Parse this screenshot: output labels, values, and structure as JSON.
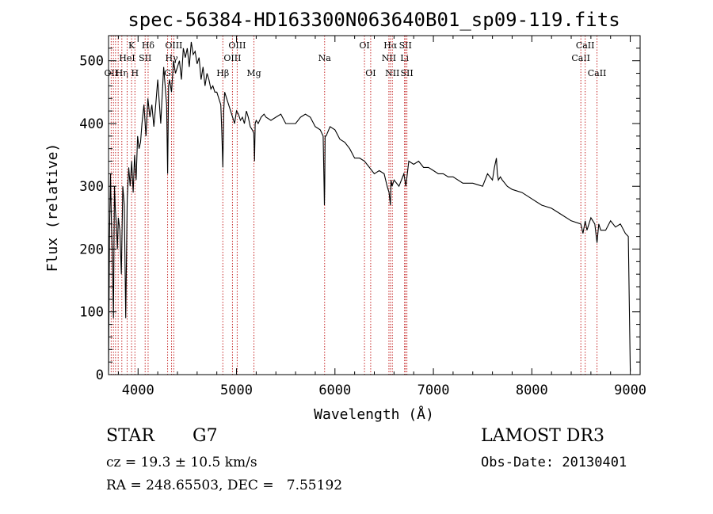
{
  "chart_data": {
    "type": "line",
    "title": "spec-56384-HD163300N063640B01_sp09-119.fits",
    "xlabel": "Wavelength (Å)",
    "ylabel": "Flux (relative)",
    "xlim": [
      3700,
      9100
    ],
    "ylim": [
      0,
      540
    ],
    "xticks": [
      {
        "value": 4000,
        "label": "4000"
      },
      {
        "value": 5000,
        "label": "5000"
      },
      {
        "value": 6000,
        "label": "6000"
      },
      {
        "value": 7000,
        "label": "7000"
      },
      {
        "value": 8000,
        "label": "8000"
      },
      {
        "value": 9000,
        "label": "9000"
      }
    ],
    "yticks": [
      {
        "value": 0,
        "label": "0"
      },
      {
        "value": 100,
        "label": "100"
      },
      {
        "value": 200,
        "label": "200"
      },
      {
        "value": 300,
        "label": "300"
      },
      {
        "value": 400,
        "label": "400"
      },
      {
        "value": 500,
        "label": "500"
      }
    ],
    "grid": false,
    "line_color": "#000000",
    "marker_color": "#c62828",
    "spectrum": {
      "x": [
        3700,
        3710,
        3720,
        3730,
        3740,
        3750,
        3760,
        3770,
        3780,
        3790,
        3800,
        3815,
        3830,
        3845,
        3860,
        3875,
        3890,
        3905,
        3920,
        3935,
        3950,
        3965,
        3980,
        3995,
        4010,
        4025,
        4040,
        4060,
        4080,
        4100,
        4120,
        4140,
        4160,
        4180,
        4200,
        4230,
        4260,
        4290,
        4300,
        4310,
        4320,
        4340,
        4360,
        4380,
        4400,
        4420,
        4440,
        4460,
        4480,
        4500,
        4520,
        4540,
        4560,
        4580,
        4600,
        4620,
        4640,
        4660,
        4680,
        4700,
        4720,
        4740,
        4760,
        4780,
        4800,
        4820,
        4840,
        4850,
        4861,
        4870,
        4880,
        4900,
        4920,
        4940,
        4960,
        4980,
        5000,
        5020,
        5040,
        5060,
        5080,
        5100,
        5120,
        5140,
        5160,
        5175,
        5183,
        5190,
        5200,
        5220,
        5250,
        5280,
        5300,
        5350,
        5400,
        5450,
        5500,
        5550,
        5600,
        5650,
        5700,
        5750,
        5800,
        5850,
        5880,
        5890,
        5893,
        5896,
        5900,
        5910,
        5950,
        6000,
        6050,
        6100,
        6150,
        6200,
        6250,
        6300,
        6350,
        6400,
        6450,
        6500,
        6530,
        6550,
        6563,
        6570,
        6580,
        6600,
        6650,
        6700,
        6720,
        6750,
        6800,
        6850,
        6900,
        6950,
        7000,
        7050,
        7100,
        7150,
        7200,
        7300,
        7400,
        7500,
        7550,
        7600,
        7620,
        7640,
        7650,
        7660,
        7680,
        7700,
        7750,
        7800,
        7900,
        8000,
        8100,
        8200,
        8300,
        8400,
        8498,
        8520,
        8542,
        8560,
        8600,
        8640,
        8662,
        8680,
        8700,
        8750,
        8800,
        8850,
        8900,
        8950,
        8980,
        9000
      ],
      "y": [
        5,
        220,
        320,
        240,
        180,
        90,
        300,
        260,
        240,
        200,
        250,
        230,
        160,
        300,
        270,
        90,
        280,
        330,
        300,
        340,
        290,
        350,
        310,
        380,
        360,
        370,
        400,
        430,
        380,
        440,
        410,
        430,
        395,
        430,
        470,
        400,
        490,
        430,
        320,
        460,
        470,
        450,
        500,
        480,
        490,
        500,
        470,
        520,
        505,
        520,
        490,
        530,
        510,
        515,
        495,
        505,
        470,
        490,
        460,
        480,
        470,
        455,
        460,
        450,
        450,
        440,
        430,
        390,
        330,
        420,
        450,
        440,
        430,
        420,
        410,
        400,
        420,
        415,
        405,
        410,
        400,
        420,
        410,
        395,
        390,
        385,
        340,
        400,
        405,
        400,
        410,
        415,
        410,
        405,
        410,
        415,
        400,
        400,
        400,
        410,
        415,
        410,
        395,
        390,
        380,
        300,
        270,
        300,
        380,
        380,
        395,
        390,
        375,
        370,
        360,
        345,
        345,
        340,
        330,
        320,
        325,
        320,
        300,
        290,
        270,
        310,
        300,
        310,
        300,
        320,
        300,
        340,
        335,
        340,
        330,
        330,
        325,
        320,
        320,
        315,
        315,
        305,
        305,
        300,
        320,
        310,
        330,
        345,
        320,
        310,
        315,
        310,
        300,
        295,
        290,
        280,
        270,
        265,
        255,
        245,
        240,
        225,
        245,
        230,
        250,
        240,
        210,
        240,
        230,
        230,
        245,
        235,
        240,
        225,
        220,
        5
      ]
    },
    "lines": [
      {
        "wave": 3727,
        "label": "OII",
        "row": 3
      },
      {
        "wave": 3750,
        "label": "",
        "row": 0
      },
      {
        "wave": 3771,
        "label": "",
        "row": 0
      },
      {
        "wave": 3798,
        "label": "",
        "row": 0
      },
      {
        "wave": 3835,
        "label": "Hη",
        "row": 3
      },
      {
        "wave": 3889,
        "label": "HeI",
        "row": 2
      },
      {
        "wave": 3934,
        "label": "K",
        "row": 1
      },
      {
        "wave": 3968,
        "label": "H",
        "row": 3
      },
      {
        "wave": 4072,
        "label": "SII",
        "row": 2
      },
      {
        "wave": 4102,
        "label": "Hδ",
        "row": 1
      },
      {
        "wave": 4300,
        "label": "G",
        "row": 3
      },
      {
        "wave": 4340,
        "label": "Hγ",
        "row": 2
      },
      {
        "wave": 4363,
        "label": "OIII",
        "row": 1
      },
      {
        "wave": 4861,
        "label": "Hβ",
        "row": 3
      },
      {
        "wave": 4959,
        "label": "OIII",
        "row": 2
      },
      {
        "wave": 5007,
        "label": "OIII",
        "row": 1
      },
      {
        "wave": 5177,
        "label": "Mg",
        "row": 3
      },
      {
        "wave": 5895,
        "label": "Na",
        "row": 2
      },
      {
        "wave": 6300,
        "label": "OI",
        "row": 1
      },
      {
        "wave": 6363,
        "label": "OI",
        "row": 3
      },
      {
        "wave": 6548,
        "label": "NII",
        "row": 2
      },
      {
        "wave": 6563,
        "label": "Hα",
        "row": 1
      },
      {
        "wave": 6583,
        "label": "NII",
        "row": 3
      },
      {
        "wave": 6707,
        "label": "Li",
        "row": 2
      },
      {
        "wave": 6716,
        "label": "SII",
        "row": 1
      },
      {
        "wave": 6731,
        "label": "SII",
        "row": 3
      },
      {
        "wave": 8498,
        "label": "CaII",
        "row": 2
      },
      {
        "wave": 8542,
        "label": "CaII",
        "row": 1
      },
      {
        "wave": 8662,
        "label": "CaII",
        "row": 3
      }
    ]
  },
  "info": {
    "class_label": "STAR",
    "subclass_label": "G7",
    "survey_label": "LAMOST DR3",
    "cz_text": "cz = 19.3 ± 10.5 km/s",
    "obs_date_text": "Obs-Date: 20130401",
    "coords_text": "RA = 248.65503, DEC =   7.55192"
  }
}
